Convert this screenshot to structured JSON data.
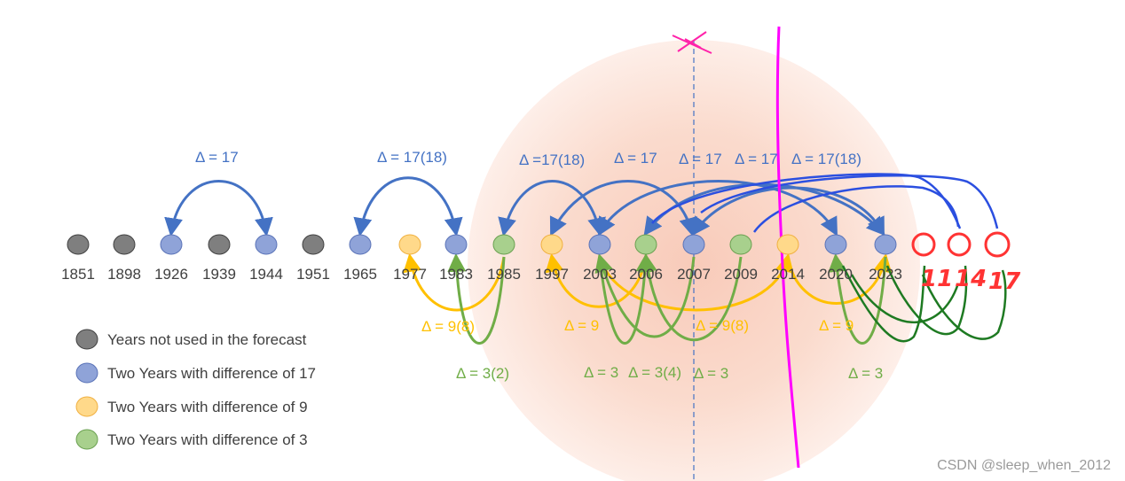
{
  "colors": {
    "blue": "#4472c4",
    "blue_node": "#8fa3d8",
    "gold": "#ffc000",
    "gold_node": "#ffd98a",
    "green": "#70ad47",
    "green_node": "#a8d08d",
    "gray_node": "#7f7f7f",
    "circle": "#f8cbb7",
    "magenta": "#ff00ff",
    "red": "#ff3333",
    "hand_blue": "#2b4fe0",
    "hand_green": "#1e7a22"
  },
  "years": [
    {
      "label": "1851",
      "cat": "gray"
    },
    {
      "label": "1898",
      "cat": "gray"
    },
    {
      "label": "1926",
      "cat": "blue"
    },
    {
      "label": "1939",
      "cat": "gray"
    },
    {
      "label": "1944",
      "cat": "blue"
    },
    {
      "label": "1951",
      "cat": "gray"
    },
    {
      "label": "1965",
      "cat": "blue"
    },
    {
      "label": "1977",
      "cat": "gold"
    },
    {
      "label": "1983",
      "cat": "blue"
    },
    {
      "label": "1985",
      "cat": "green"
    },
    {
      "label": "1997",
      "cat": "gold"
    },
    {
      "label": "2003",
      "cat": "blue"
    },
    {
      "label": "2006",
      "cat": "green"
    },
    {
      "label": "2007",
      "cat": "blue"
    },
    {
      "label": "2009",
      "cat": "green"
    },
    {
      "label": "2014",
      "cat": "gold"
    },
    {
      "label": "2020",
      "cat": "blue"
    },
    {
      "label": "2023",
      "cat": "blue"
    }
  ],
  "blue_labels": [
    "Δ = 17",
    "Δ = 17(18)",
    "Δ =17(18)",
    "Δ = 17",
    "Δ = 17",
    "Δ = 17",
    "Δ = 17(18)"
  ],
  "gold_labels": [
    "Δ = 9(8)",
    "Δ = 9",
    "Δ = 9(8)",
    "Δ = 9"
  ],
  "green_labels": [
    "Δ = 3(2)",
    "Δ = 3",
    "Δ = 3(4)",
    "Δ = 3",
    "Δ = 3"
  ],
  "handwritten": [
    "11",
    "14",
    "17"
  ],
  "legend": [
    {
      "text": "Years not used in the forecast",
      "cat": "gray"
    },
    {
      "text": "Two Years with difference of 17",
      "cat": "blue"
    },
    {
      "text": "Two Years with difference of 9",
      "cat": "gold"
    },
    {
      "text": "Two Years with difference of 3",
      "cat": "green"
    }
  ],
  "watermark": "CSDN @sleep_when_2012"
}
